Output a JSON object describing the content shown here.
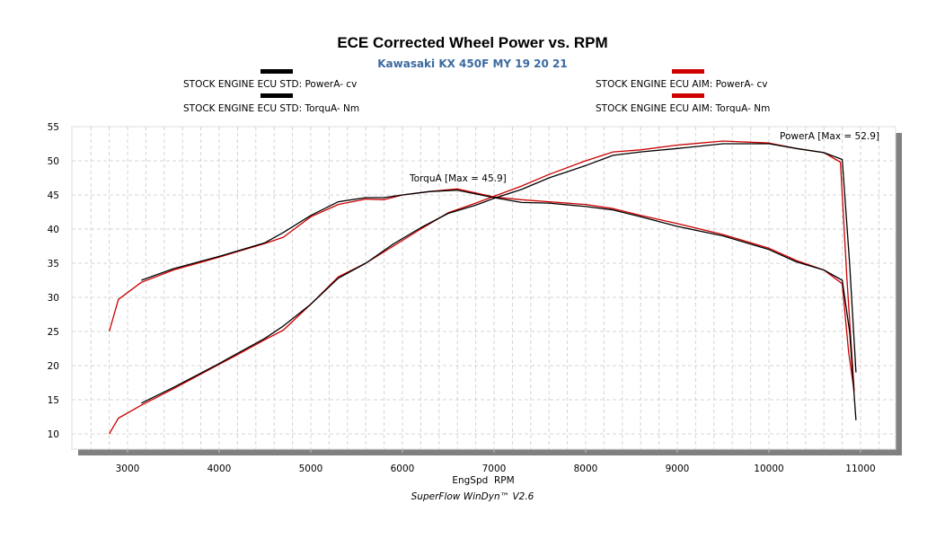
{
  "chart_data": {
    "type": "line",
    "title": "ECE Corrected Wheel Power vs. RPM",
    "subtitle": "Kawasaki KX 450F MY 19 20 21",
    "xlabel": "EngSpd  RPM",
    "ylabel": "",
    "xlim": [
      2400,
      11400
    ],
    "ylim": [
      7.5,
      55
    ],
    "x_ticks": [
      3000,
      4000,
      5000,
      6000,
      7000,
      8000,
      9000,
      10000,
      11000
    ],
    "y_ticks": [
      10,
      15,
      20,
      25,
      30,
      35,
      40,
      45,
      50,
      55
    ],
    "grid": true,
    "legend_placement": "top",
    "annotations": [
      {
        "text": "TorquA [Max = 45.9]",
        "x": 6500,
        "y": 46.8
      },
      {
        "text": "PowerA [Max = 52.9]",
        "x": 10950,
        "y": 54.0
      }
    ],
    "series": [
      {
        "name": "STOCK ENGINE ECU STD: PowerA- cv",
        "color": "#000000",
        "x": [
          3150,
          3500,
          4000,
          4200,
          4500,
          4700,
          5000,
          5300,
          5600,
          5900,
          6200,
          6500,
          6800,
          7000,
          7300,
          7600,
          8000,
          8300,
          8600,
          9000,
          9500,
          10000,
          10300,
          10600,
          10800,
          10880,
          10950
        ],
        "values": [
          14.5,
          16.8,
          20.3,
          21.8,
          24.0,
          25.8,
          29.0,
          32.8,
          35.0,
          37.8,
          40.2,
          42.3,
          43.5,
          44.5,
          45.8,
          47.5,
          49.3,
          50.8,
          51.3,
          51.8,
          52.5,
          52.5,
          51.8,
          51.2,
          50.2,
          35.0,
          19.0
        ]
      },
      {
        "name": "STOCK ENGINE ECU AIM: PowerA- cv",
        "color": "#cc0000",
        "x": [
          2800,
          2900,
          3150,
          3500,
          4000,
          4200,
          4500,
          4700,
          5000,
          5300,
          5600,
          5900,
          6200,
          6500,
          6800,
          7000,
          7300,
          7600,
          8000,
          8300,
          8600,
          9000,
          9500,
          10000,
          10300,
          10600,
          10780,
          10850,
          10930
        ],
        "values": [
          10.0,
          12.3,
          14.2,
          16.6,
          20.2,
          21.6,
          23.8,
          25.2,
          29.0,
          33.0,
          35.0,
          37.5,
          40.0,
          42.4,
          43.8,
          44.8,
          46.3,
          48.0,
          50.0,
          51.3,
          51.6,
          52.3,
          52.9,
          52.6,
          51.8,
          51.2,
          49.8,
          33.0,
          16.3
        ]
      },
      {
        "name": "STOCK ENGINE ECU STD: TorquA- Nm",
        "color": "#000000",
        "x": [
          3150,
          3500,
          4000,
          4500,
          4700,
          5000,
          5300,
          5600,
          5800,
          6000,
          6300,
          6600,
          7000,
          7300,
          7600,
          8000,
          8300,
          8600,
          9000,
          9500,
          10000,
          10300,
          10600,
          10800,
          10880,
          10950
        ],
        "values": [
          32.5,
          34.2,
          36.0,
          38.0,
          39.5,
          42.0,
          44.0,
          44.6,
          44.6,
          45.0,
          45.5,
          45.7,
          44.6,
          43.9,
          43.8,
          43.3,
          42.8,
          41.8,
          40.4,
          39.0,
          37.0,
          35.2,
          34.0,
          32.5,
          25.0,
          12.0
        ]
      },
      {
        "name": "STOCK ENGINE ECU AIM: TorquA- Nm",
        "color": "#cc0000",
        "x": [
          2800,
          2900,
          3150,
          3500,
          4000,
          4500,
          4700,
          5000,
          5300,
          5600,
          5800,
          6000,
          6300,
          6600,
          7000,
          7300,
          7600,
          8000,
          8300,
          8600,
          9000,
          9500,
          10000,
          10300,
          10600,
          10800,
          10870,
          10930
        ],
        "values": [
          25.0,
          29.7,
          32.2,
          34.0,
          35.9,
          37.9,
          38.8,
          41.8,
          43.6,
          44.4,
          44.3,
          45.0,
          45.5,
          45.9,
          44.7,
          44.3,
          44.0,
          43.6,
          43.0,
          42.0,
          40.8,
          39.2,
          37.2,
          35.4,
          34.0,
          32.0,
          22.0,
          16.2
        ]
      }
    ]
  },
  "legend": [
    {
      "label": "STOCK ENGINE ECU STD: PowerA- cv",
      "color": "#000000"
    },
    {
      "label": "STOCK ENGINE ECU STD: TorquA- Nm",
      "color": "#000000"
    },
    {
      "label": "STOCK ENGINE ECU AIM: PowerA- cv",
      "color": "#cc0000"
    },
    {
      "label": "STOCK ENGINE ECU AIM: TorquA- Nm",
      "color": "#cc0000"
    }
  ],
  "footer": "SuperFlow WinDyn™ V2.6"
}
